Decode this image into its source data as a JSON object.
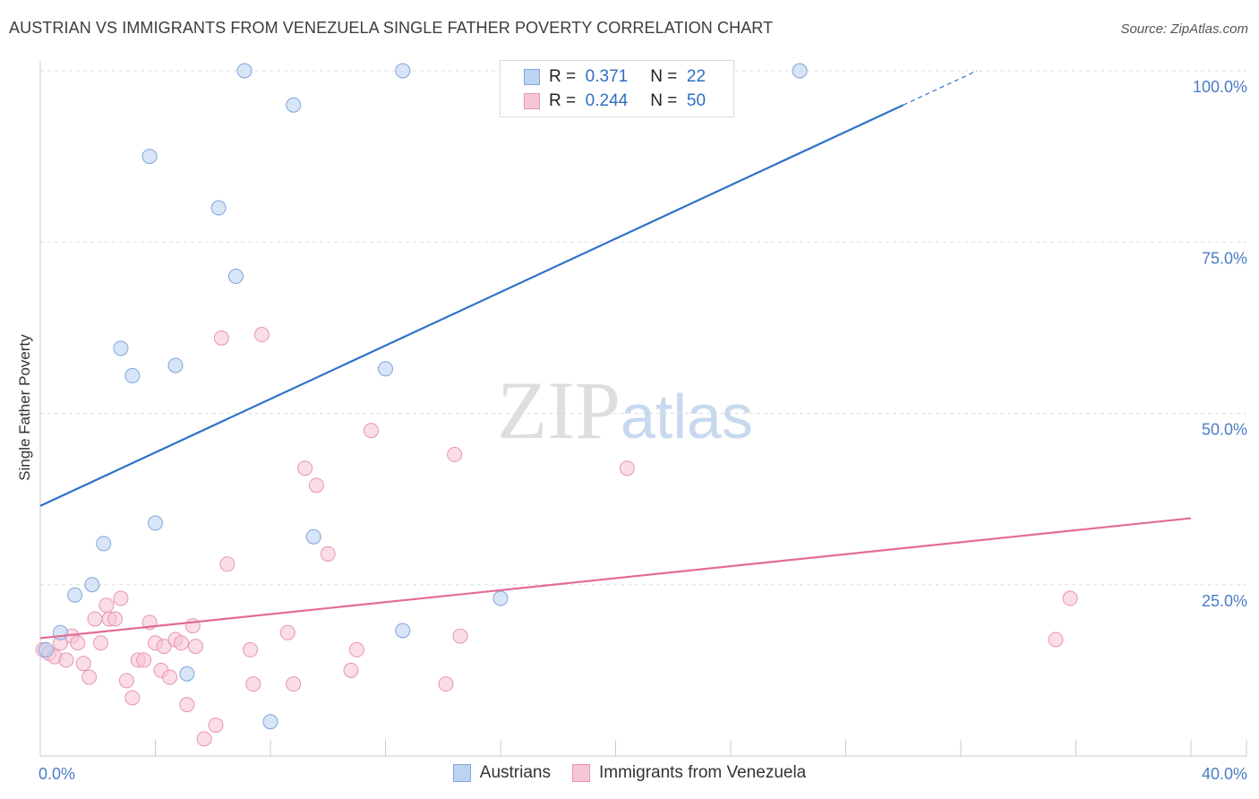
{
  "title": "AUSTRIAN VS IMMIGRANTS FROM VENEZUELA SINGLE FATHER POVERTY CORRELATION CHART",
  "source": "Source: ZipAtlas.com",
  "watermark": {
    "zip": "ZIP",
    "atlas": "atlas"
  },
  "legend": {
    "rows": [
      {
        "r_label": "R =",
        "r_value": "0.371",
        "n_label": "N =",
        "n_value": "22"
      },
      {
        "r_label": "R =",
        "r_value": "0.244",
        "n_label": "N =",
        "n_value": "50"
      }
    ]
  },
  "colors": {
    "blue_fill": "#bcd4f2",
    "blue_stroke": "#7ea6dc",
    "blue_line": "#2f72c8",
    "pink_fill": "#f6c6d5",
    "pink_stroke": "#e895b0",
    "pink_line": "#e36b98",
    "grid": "#dddddd",
    "tick_text": "#4a7cc4"
  },
  "chart_data": {
    "type": "scatter",
    "title": "AUSTRIAN VS IMMIGRANTS FROM VENEZUELA SINGLE FATHER POVERTY CORRELATION CHART",
    "xlabel": "",
    "ylabel": "Single Father Poverty",
    "xlim": [
      0,
      40
    ],
    "ylim": [
      0,
      100
    ],
    "x_tick_labels": [
      "0.0%",
      "40.0%"
    ],
    "y_tick_values": [
      25,
      50,
      75,
      100
    ],
    "y_tick_labels": [
      "25.0%",
      "50.0%",
      "75.0%",
      "100.0%"
    ],
    "grid": true,
    "legend_position": "top-center",
    "series": [
      {
        "name": "Austrians",
        "color": "#bcd4f2",
        "points": [
          [
            0.2,
            15.5
          ],
          [
            0.7,
            18
          ],
          [
            1.2,
            23.5
          ],
          [
            1.8,
            25
          ],
          [
            2.2,
            31
          ],
          [
            2.8,
            59.5
          ],
          [
            3.2,
            55.5
          ],
          [
            3.8,
            87.5
          ],
          [
            4.0,
            34
          ],
          [
            4.7,
            57
          ],
          [
            5.1,
            12
          ],
          [
            6.2,
            80
          ],
          [
            6.8,
            70
          ],
          [
            7.1,
            100
          ],
          [
            8.0,
            5
          ],
          [
            8.8,
            95
          ],
          [
            9.5,
            32
          ],
          [
            12.0,
            56.5
          ],
          [
            12.6,
            100
          ],
          [
            12.6,
            18.3
          ],
          [
            16.0,
            23
          ],
          [
            26.4,
            100
          ]
        ],
        "trend": {
          "x": [
            0,
            30
          ],
          "y": [
            36.5,
            95
          ]
        }
      },
      {
        "name": "Immigrants from Venezuela",
        "color": "#f6c6d5",
        "points": [
          [
            0.1,
            15.5
          ],
          [
            0.3,
            15
          ],
          [
            0.5,
            14.5
          ],
          [
            0.7,
            16.5
          ],
          [
            0.9,
            14
          ],
          [
            1.1,
            17.5
          ],
          [
            1.3,
            16.5
          ],
          [
            1.5,
            13.5
          ],
          [
            1.7,
            11.5
          ],
          [
            1.9,
            20
          ],
          [
            2.1,
            16.5
          ],
          [
            2.3,
            22
          ],
          [
            2.4,
            20
          ],
          [
            2.6,
            20
          ],
          [
            2.8,
            23
          ],
          [
            3.0,
            11
          ],
          [
            3.2,
            8.5
          ],
          [
            3.4,
            14
          ],
          [
            3.6,
            14
          ],
          [
            3.8,
            19.5
          ],
          [
            4.0,
            16.5
          ],
          [
            4.2,
            12.5
          ],
          [
            4.3,
            16
          ],
          [
            4.5,
            11.5
          ],
          [
            4.7,
            17
          ],
          [
            4.9,
            16.5
          ],
          [
            5.1,
            7.5
          ],
          [
            5.3,
            19
          ],
          [
            5.4,
            16
          ],
          [
            5.7,
            2.5
          ],
          [
            6.1,
            4.5
          ],
          [
            6.3,
            61
          ],
          [
            6.5,
            28
          ],
          [
            7.3,
            15.5
          ],
          [
            7.4,
            10.5
          ],
          [
            7.7,
            61.5
          ],
          [
            8.6,
            18
          ],
          [
            8.8,
            10.5
          ],
          [
            9.2,
            42
          ],
          [
            9.6,
            39.5
          ],
          [
            10.0,
            29.5
          ],
          [
            10.8,
            12.5
          ],
          [
            11.0,
            15.5
          ],
          [
            11.5,
            47.5
          ],
          [
            14.1,
            10.5
          ],
          [
            14.4,
            44
          ],
          [
            14.6,
            17.5
          ],
          [
            20.4,
            42
          ],
          [
            35.3,
            17
          ],
          [
            35.8,
            23
          ]
        ],
        "trend": {
          "x": [
            0,
            40
          ],
          "y": [
            17.2,
            34.7
          ]
        }
      }
    ]
  },
  "bottom_legend": [
    {
      "label": "Austrians"
    },
    {
      "label": "Immigrants from Venezuela"
    }
  ]
}
